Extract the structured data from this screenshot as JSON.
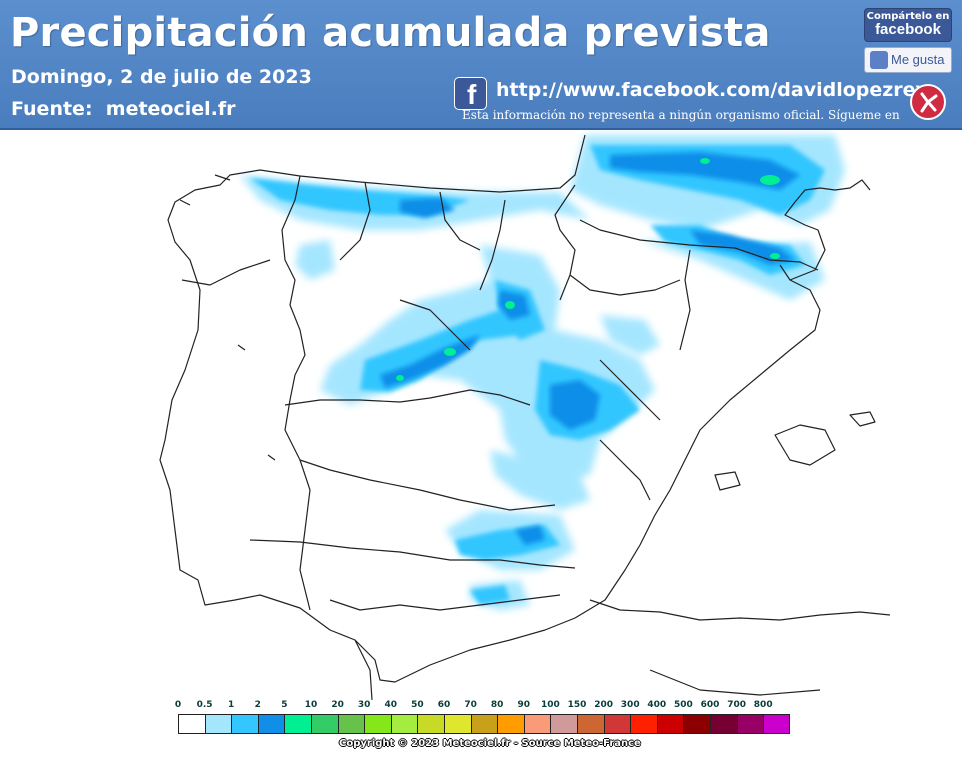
{
  "header": {
    "title": "Precipitación acumulada prevista",
    "date": "Domingo, 2 de julio de 2023",
    "source": "Fuente:  meteociel.fr",
    "facebook_url": "http://www.facebook.com/davidlopezrey",
    "disclaimer": "Esta información no representa a ningún organismo oficial. Sígueme en",
    "share_label": "Compártelo en",
    "share_brand": "facebook",
    "like_label": "Me gusta",
    "fb_glyph": "f",
    "bg_color": "#4a7dbd"
  },
  "map": {
    "ocean_color": "#ffffff",
    "land_color": "#ffffff",
    "border_color": "#222222"
  },
  "legend": {
    "levels": [
      "0",
      "0.5",
      "1",
      "2",
      "5",
      "10",
      "20",
      "30",
      "40",
      "50",
      "60",
      "70",
      "80",
      "90",
      "100",
      "150",
      "200",
      "300",
      "400",
      "500",
      "600",
      "700",
      "800"
    ],
    "colors": [
      "#ffffff",
      "#a5e6ff",
      "#33c6ff",
      "#108ee8",
      "#00ef92",
      "#33cc66",
      "#66c24a",
      "#85e61a",
      "#a5ec40",
      "#c6da26",
      "#dee62e",
      "#c8a01a",
      "#ff9c00",
      "#f99a79",
      "#d09a9a",
      "#cc6633",
      "#d13737",
      "#ff2000",
      "#cc0000",
      "#8c0000",
      "#770033",
      "#990066",
      "#cc00cc"
    ],
    "copyright": "Copyright © 2023 Meteociel.fr - Source Meteo-France"
  }
}
